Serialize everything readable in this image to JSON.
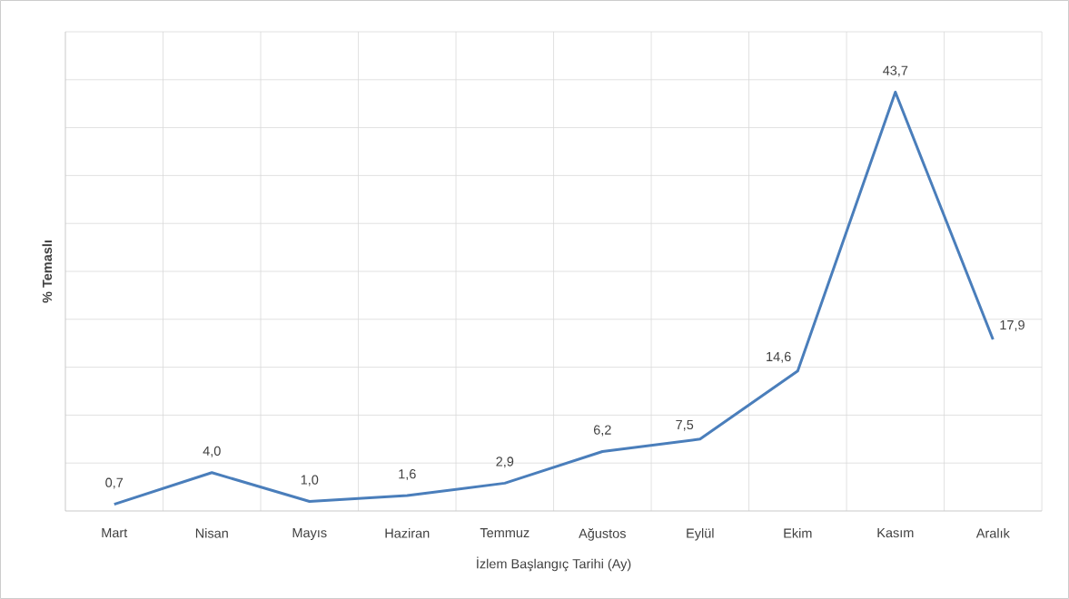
{
  "chart_data": {
    "type": "line",
    "xlabel": "İzlem Başlangıç Tarihi (Ay)",
    "ylabel": "% Temaslı",
    "categories": [
      "Mart",
      "Nisan",
      "Mayıs",
      "Haziran",
      "Temmuz",
      "Ağustos",
      "Eylül",
      "Ekim",
      "Kasım",
      "Aralık"
    ],
    "values": [
      0.7,
      4.0,
      1.0,
      1.6,
      2.9,
      6.2,
      7.5,
      14.6,
      43.7,
      17.9
    ],
    "value_labels": [
      "0,7",
      "4,0",
      "1,0",
      "1,6",
      "2,9",
      "6,2",
      "7,5",
      "14,6",
      "43,7",
      "17,9"
    ],
    "color": "#4a7ebb",
    "ylim": [
      0,
      50
    ],
    "yticks": [
      {
        "value": 0,
        "label": null
      },
      {
        "value": 5,
        "label": null
      },
      {
        "value": 10,
        "label": null
      },
      {
        "value": 15,
        "label": null
      },
      {
        "value": 20,
        "label": null
      },
      {
        "value": 25,
        "label": null
      },
      {
        "value": 30,
        "label": null
      },
      {
        "value": 35,
        "label": null
      },
      {
        "value": 40,
        "label": null
      },
      {
        "value": 45,
        "label": null
      },
      {
        "value": 50,
        "label": null
      }
    ],
    "tick_labels": "x",
    "grid": true,
    "marker": "none",
    "line_style": "solid"
  }
}
